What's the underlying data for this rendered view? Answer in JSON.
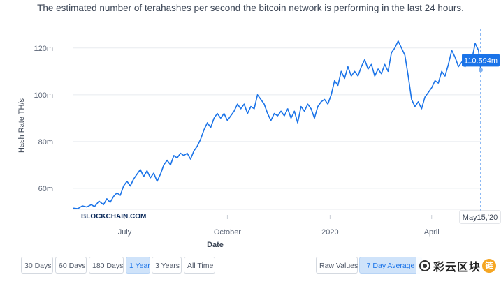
{
  "header": {
    "subtitle": "The estimated number of terahashes per second the bitcoin network is performing in the last 24 hours."
  },
  "chart_data": {
    "type": "line",
    "subtitle": "The estimated number of terahashes per second the bitcoin network is performing in the last 24 hours.",
    "xlabel": "Date",
    "ylabel": "Hash Rate TH/s",
    "ylim": [
      51,
      128
    ],
    "y_ticks": [
      60,
      80,
      100,
      120
    ],
    "y_tick_labels": [
      "60m",
      "80m",
      "100m",
      "120m"
    ],
    "x_range": [
      "2019-05-16",
      "2020-05-15"
    ],
    "x_ticks": [
      "2019-07-01",
      "2019-10-01",
      "2020-01-01",
      "2020-04-01"
    ],
    "x_tick_labels": [
      "July",
      "October",
      "2020",
      "April"
    ],
    "grid": true,
    "line_color": "#1a73e8",
    "series": [
      {
        "values": [
          [
            "2019-05-16",
            51.5
          ],
          [
            "2019-05-20",
            51.3
          ],
          [
            "2019-05-24",
            52.5
          ],
          [
            "2019-05-28",
            52.0
          ],
          [
            "2019-06-01",
            53.0
          ],
          [
            "2019-06-04",
            52.2
          ],
          [
            "2019-06-08",
            54.5
          ],
          [
            "2019-06-12",
            53.0
          ],
          [
            "2019-06-15",
            55.5
          ],
          [
            "2019-06-18",
            54.0
          ],
          [
            "2019-06-21",
            56.5
          ],
          [
            "2019-06-24",
            58.0
          ],
          [
            "2019-06-27",
            57.0
          ],
          [
            "2019-06-30",
            61.0
          ],
          [
            "2019-07-03",
            63.0
          ],
          [
            "2019-07-06",
            61.0
          ],
          [
            "2019-07-09",
            64.0
          ],
          [
            "2019-07-12",
            66.0
          ],
          [
            "2019-07-15",
            68.0
          ],
          [
            "2019-07-18",
            65.0
          ],
          [
            "2019-07-21",
            67.5
          ],
          [
            "2019-07-24",
            64.5
          ],
          [
            "2019-07-27",
            66.5
          ],
          [
            "2019-07-30",
            63.0
          ],
          [
            "2019-08-02",
            66.0
          ],
          [
            "2019-08-05",
            70.0
          ],
          [
            "2019-08-08",
            72.0
          ],
          [
            "2019-08-11",
            70.0
          ],
          [
            "2019-08-14",
            74.0
          ],
          [
            "2019-08-17",
            73.0
          ],
          [
            "2019-08-20",
            75.0
          ],
          [
            "2019-08-23",
            74.0
          ],
          [
            "2019-08-26",
            75.0
          ],
          [
            "2019-08-29",
            72.5
          ],
          [
            "2019-09-01",
            76.0
          ],
          [
            "2019-09-04",
            78.0
          ],
          [
            "2019-09-07",
            81.0
          ],
          [
            "2019-09-10",
            85.0
          ],
          [
            "2019-09-13",
            88.0
          ],
          [
            "2019-09-16",
            86.0
          ],
          [
            "2019-09-19",
            90.0
          ],
          [
            "2019-09-22",
            92.0
          ],
          [
            "2019-09-25",
            90.0
          ],
          [
            "2019-09-28",
            92.0
          ],
          [
            "2019-10-01",
            89.0
          ],
          [
            "2019-10-04",
            91.0
          ],
          [
            "2019-10-07",
            93.0
          ],
          [
            "2019-10-10",
            96.0
          ],
          [
            "2019-10-13",
            94.0
          ],
          [
            "2019-10-16",
            96.0
          ],
          [
            "2019-10-19",
            92.0
          ],
          [
            "2019-10-22",
            95.0
          ],
          [
            "2019-10-25",
            94.0
          ],
          [
            "2019-10-28",
            100.0
          ],
          [
            "2019-10-31",
            98.0
          ],
          [
            "2019-11-03",
            96.0
          ],
          [
            "2019-11-06",
            92.0
          ],
          [
            "2019-11-09",
            89.0
          ],
          [
            "2019-11-12",
            92.0
          ],
          [
            "2019-11-15",
            91.0
          ],
          [
            "2019-11-18",
            93.0
          ],
          [
            "2019-11-21",
            91.0
          ],
          [
            "2019-11-24",
            94.0
          ],
          [
            "2019-11-27",
            90.0
          ],
          [
            "2019-11-30",
            93.0
          ],
          [
            "2019-12-03",
            88.0
          ],
          [
            "2019-12-06",
            95.0
          ],
          [
            "2019-12-09",
            93.0
          ],
          [
            "2019-12-12",
            96.0
          ],
          [
            "2019-12-15",
            94.0
          ],
          [
            "2019-12-18",
            90.0
          ],
          [
            "2019-12-21",
            95.0
          ],
          [
            "2019-12-24",
            97.0
          ],
          [
            "2019-12-27",
            98.0
          ],
          [
            "2019-12-30",
            96.0
          ],
          [
            "2020-01-02",
            100.0
          ],
          [
            "2020-01-05",
            106.0
          ],
          [
            "2020-01-08",
            104.0
          ],
          [
            "2020-01-11",
            110.0
          ],
          [
            "2020-01-14",
            107.0
          ],
          [
            "2020-01-17",
            112.0
          ],
          [
            "2020-01-20",
            108.0
          ],
          [
            "2020-01-23",
            110.0
          ],
          [
            "2020-01-26",
            108.0
          ],
          [
            "2020-01-29",
            112.0
          ],
          [
            "2020-02-01",
            115.0
          ],
          [
            "2020-02-04",
            111.0
          ],
          [
            "2020-02-07",
            113.0
          ],
          [
            "2020-02-10",
            108.0
          ],
          [
            "2020-02-13",
            111.0
          ],
          [
            "2020-02-16",
            109.0
          ],
          [
            "2020-02-19",
            113.0
          ],
          [
            "2020-02-22",
            110.0
          ],
          [
            "2020-02-25",
            118.0
          ],
          [
            "2020-02-28",
            120.0
          ],
          [
            "2020-03-02",
            123.0
          ],
          [
            "2020-03-05",
            120.0
          ],
          [
            "2020-03-08",
            117.0
          ],
          [
            "2020-03-11",
            108.0
          ],
          [
            "2020-03-14",
            98.0
          ],
          [
            "2020-03-17",
            95.0
          ],
          [
            "2020-03-20",
            97.0
          ],
          [
            "2020-03-23",
            94.0
          ],
          [
            "2020-03-26",
            99.0
          ],
          [
            "2020-03-29",
            101.0
          ],
          [
            "2020-04-01",
            103.0
          ],
          [
            "2020-04-04",
            106.0
          ],
          [
            "2020-04-07",
            105.0
          ],
          [
            "2020-04-10",
            110.0
          ],
          [
            "2020-04-13",
            108.0
          ],
          [
            "2020-04-16",
            113.0
          ],
          [
            "2020-04-19",
            119.0
          ],
          [
            "2020-04-22",
            116.0
          ],
          [
            "2020-04-25",
            112.0
          ],
          [
            "2020-04-28",
            114.0
          ],
          [
            "2020-05-01",
            112.0
          ],
          [
            "2020-05-04",
            117.0
          ],
          [
            "2020-05-07",
            115.0
          ],
          [
            "2020-05-10",
            122.0
          ],
          [
            "2020-05-13",
            119.0
          ],
          [
            "2020-05-15",
            110.594
          ]
        ]
      }
    ],
    "tooltip": {
      "value_label": "110.594m",
      "date_label": "May15,'20",
      "date": "2020-05-15",
      "value": 110.594
    },
    "watermark_text": "BLOCKCHAIN.COM"
  },
  "controls": {
    "range_buttons": [
      "30 Days",
      "60 Days",
      "180 Days",
      "1 Year",
      "3 Years",
      "All Time"
    ],
    "active_range": "1 Year",
    "mode_buttons": [
      "Raw Values",
      "7 Day Average"
    ],
    "active_mode": "7 Day Average",
    "accent_color": "#1a73e8"
  },
  "overlay": {
    "watermark_text": "彩云区块",
    "badge_text": "链"
  }
}
